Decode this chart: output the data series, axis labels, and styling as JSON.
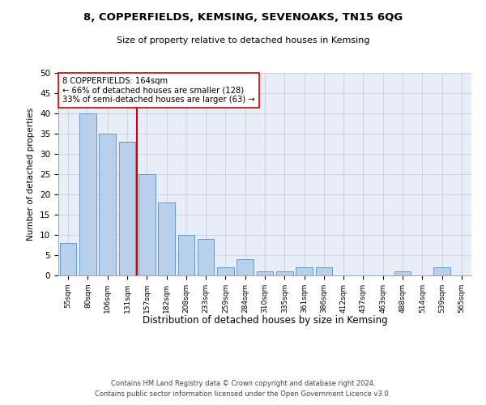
{
  "title1": "8, COPPERFIELDS, KEMSING, SEVENOAKS, TN15 6QG",
  "title2": "Size of property relative to detached houses in Kemsing",
  "xlabel": "Distribution of detached houses by size in Kemsing",
  "ylabel": "Number of detached properties",
  "categories": [
    "55sqm",
    "80sqm",
    "106sqm",
    "131sqm",
    "157sqm",
    "182sqm",
    "208sqm",
    "233sqm",
    "259sqm",
    "284sqm",
    "310sqm",
    "335sqm",
    "361sqm",
    "386sqm",
    "412sqm",
    "437sqm",
    "463sqm",
    "488sqm",
    "514sqm",
    "539sqm",
    "565sqm"
  ],
  "values": [
    8,
    40,
    35,
    33,
    25,
    18,
    10,
    9,
    2,
    4,
    1,
    1,
    2,
    2,
    0,
    0,
    0,
    1,
    0,
    2,
    0
  ],
  "bar_color": "#b8d0ea",
  "bar_edge_color": "#6699cc",
  "vline_color": "#cc0000",
  "annotation_title": "8 COPPERFIELDS: 164sqm",
  "annotation_line1": "← 66% of detached houses are smaller (128)",
  "annotation_line2": "33% of semi-detached houses are larger (63) →",
  "annotation_box_color": "#ffffff",
  "annotation_box_edge": "#cc0000",
  "ylim": [
    0,
    50
  ],
  "yticks": [
    0,
    5,
    10,
    15,
    20,
    25,
    30,
    35,
    40,
    45,
    50
  ],
  "footer1": "Contains HM Land Registry data © Crown copyright and database right 2024.",
  "footer2": "Contains public sector information licensed under the Open Government Licence v3.0.",
  "plot_bg_color": "#e8eef8"
}
